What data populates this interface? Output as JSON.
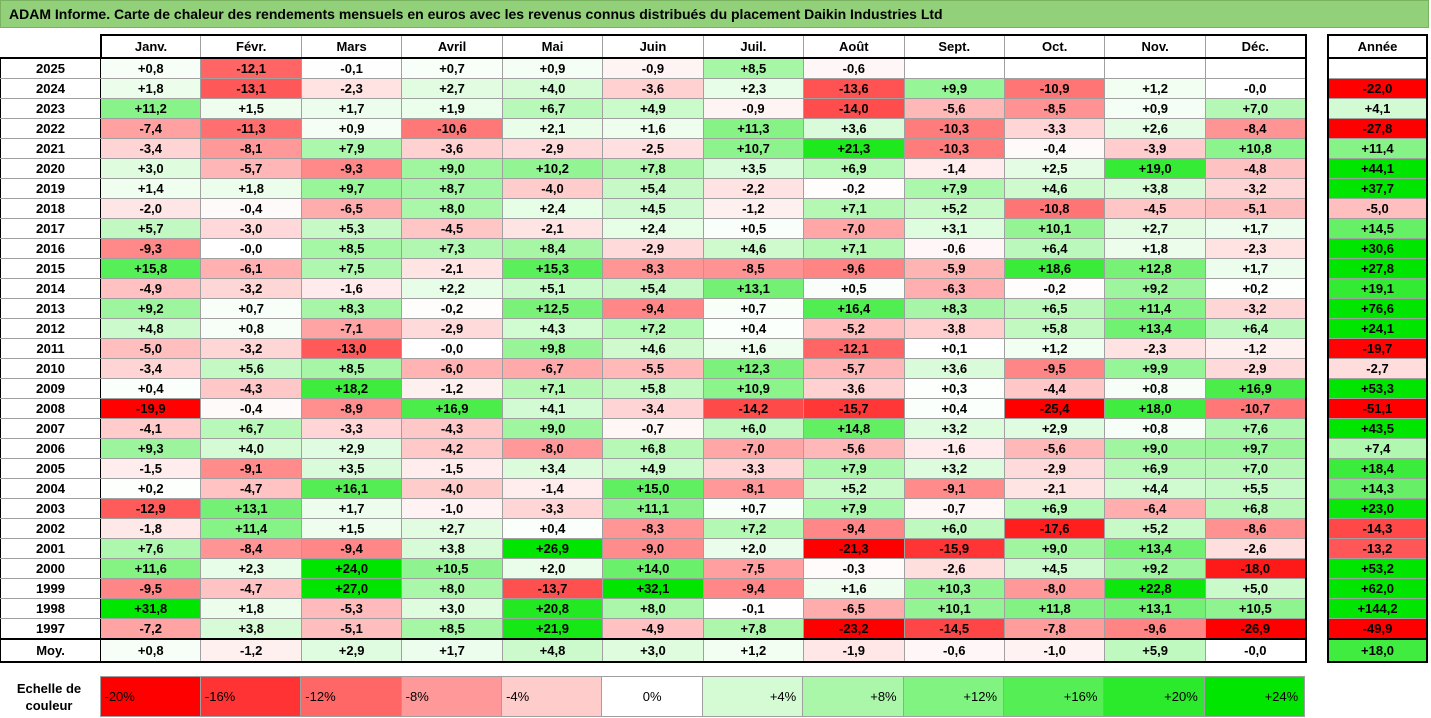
{
  "title": "ADAM Informe. Carte de chaleur des rendements mensuels en euros avec les revenus connus distribués du placement Daikin Industries Ltd",
  "colors": {
    "title_bg": "#93d07a",
    "neg_max": "#ff0000",
    "pos_max": "#00e600",
    "neutral": "#ffffff"
  },
  "chart_data": {
    "type": "heatmap",
    "months": [
      "Janv.",
      "Févr.",
      "Mars",
      "Avril",
      "Mai",
      "Juin",
      "Juil.",
      "Août",
      "Sept.",
      "Oct.",
      "Nov.",
      "Déc."
    ],
    "year_header": "Année",
    "rows": [
      {
        "year": "2025",
        "values": [
          "+0,8",
          "-12,1",
          "-0,1",
          "+0,7",
          "+0,9",
          "-0,9",
          "+8,5",
          "-0,6",
          "",
          "",
          "",
          ""
        ],
        "annual": ""
      },
      {
        "year": "2024",
        "values": [
          "+1,8",
          "-13,1",
          "-2,3",
          "+2,7",
          "+4,0",
          "-3,6",
          "+2,3",
          "-13,6",
          "+9,9",
          "-10,9",
          "+1,2",
          "-0,0"
        ],
        "annual": "-22,0"
      },
      {
        "year": "2023",
        "values": [
          "+11,2",
          "+1,5",
          "+1,7",
          "+1,9",
          "+6,7",
          "+4,9",
          "-0,9",
          "-14,0",
          "-5,6",
          "-8,5",
          "+0,9",
          "+7,0"
        ],
        "annual": "+4,1"
      },
      {
        "year": "2022",
        "values": [
          "-7,4",
          "-11,3",
          "+0,9",
          "-10,6",
          "+2,1",
          "+1,6",
          "+11,3",
          "+3,6",
          "-10,3",
          "-3,3",
          "+2,6",
          "-8,4"
        ],
        "annual": "-27,8"
      },
      {
        "year": "2021",
        "values": [
          "-3,4",
          "-8,1",
          "+7,9",
          "-3,6",
          "-2,9",
          "-2,5",
          "+10,7",
          "+21,3",
          "-10,3",
          "-0,4",
          "-3,9",
          "+10,8"
        ],
        "annual": "+11,4"
      },
      {
        "year": "2020",
        "values": [
          "+3,0",
          "-5,7",
          "-9,3",
          "+9,0",
          "+10,2",
          "+7,8",
          "+3,5",
          "+6,9",
          "-1,4",
          "+2,5",
          "+19,0",
          "-4,8"
        ],
        "annual": "+44,1"
      },
      {
        "year": "2019",
        "values": [
          "+1,4",
          "+1,8",
          "+9,7",
          "+8,7",
          "-4,0",
          "+5,4",
          "-2,2",
          "-0,2",
          "+7,9",
          "+4,6",
          "+3,8",
          "-3,2"
        ],
        "annual": "+37,7"
      },
      {
        "year": "2018",
        "values": [
          "-2,0",
          "-0,4",
          "-6,5",
          "+8,0",
          "+2,4",
          "+4,5",
          "-1,2",
          "+7,1",
          "+5,2",
          "-10,8",
          "-4,5",
          "-5,1"
        ],
        "annual": "-5,0"
      },
      {
        "year": "2017",
        "values": [
          "+5,7",
          "-3,0",
          "+5,3",
          "-4,5",
          "-2,1",
          "+2,4",
          "+0,5",
          "-7,0",
          "+3,1",
          "+10,1",
          "+2,7",
          "+1,7"
        ],
        "annual": "+14,5"
      },
      {
        "year": "2016",
        "values": [
          "-9,3",
          "-0,0",
          "+8,5",
          "+7,3",
          "+8,4",
          "-2,9",
          "+4,6",
          "+7,1",
          "-0,6",
          "+6,4",
          "+1,8",
          "-2,3"
        ],
        "annual": "+30,6"
      },
      {
        "year": "2015",
        "values": [
          "+15,8",
          "-6,1",
          "+7,5",
          "-2,1",
          "+15,3",
          "-8,3",
          "-8,5",
          "-9,6",
          "-5,9",
          "+18,6",
          "+12,8",
          "+1,7"
        ],
        "annual": "+27,8"
      },
      {
        "year": "2014",
        "values": [
          "-4,9",
          "-3,2",
          "-1,6",
          "+2,2",
          "+5,1",
          "+5,4",
          "+13,1",
          "+0,5",
          "-6,3",
          "-0,2",
          "+9,2",
          "+0,2"
        ],
        "annual": "+19,1"
      },
      {
        "year": "2013",
        "values": [
          "+9,2",
          "+0,7",
          "+8,3",
          "-0,2",
          "+12,5",
          "-9,4",
          "+0,7",
          "+16,4",
          "+8,3",
          "+6,5",
          "+11,4",
          "-3,2"
        ],
        "annual": "+76,6"
      },
      {
        "year": "2012",
        "values": [
          "+4,8",
          "+0,8",
          "-7,1",
          "-2,9",
          "+4,3",
          "+7,2",
          "+0,4",
          "-5,2",
          "-3,8",
          "+5,8",
          "+13,4",
          "+6,4"
        ],
        "annual": "+24,1"
      },
      {
        "year": "2011",
        "values": [
          "-5,0",
          "-3,2",
          "-13,0",
          "-0,0",
          "+9,8",
          "+4,6",
          "+1,6",
          "-12,1",
          "+0,1",
          "+1,2",
          "-2,3",
          "-1,2"
        ],
        "annual": "-19,7"
      },
      {
        "year": "2010",
        "values": [
          "-3,4",
          "+5,6",
          "+8,5",
          "-6,0",
          "-6,7",
          "-5,5",
          "+12,3",
          "-5,7",
          "+3,6",
          "-9,5",
          "+9,9",
          "-2,9"
        ],
        "annual": "-2,7"
      },
      {
        "year": "2009",
        "values": [
          "+0,4",
          "-4,3",
          "+18,2",
          "-1,2",
          "+7,1",
          "+5,8",
          "+10,9",
          "-3,6",
          "+0,3",
          "-4,4",
          "+0,8",
          "+16,9"
        ],
        "annual": "+53,3"
      },
      {
        "year": "2008",
        "values": [
          "-19,9",
          "-0,4",
          "-8,9",
          "+16,9",
          "+4,1",
          "-3,4",
          "-14,2",
          "-15,7",
          "+0,4",
          "-25,4",
          "+18,0",
          "-10,7"
        ],
        "annual": "-51,1"
      },
      {
        "year": "2007",
        "values": [
          "-4,1",
          "+6,7",
          "-3,3",
          "-4,3",
          "+9,0",
          "-0,7",
          "+6,0",
          "+14,8",
          "+3,2",
          "+2,9",
          "+0,8",
          "+7,6"
        ],
        "annual": "+43,5"
      },
      {
        "year": "2006",
        "values": [
          "+9,3",
          "+4,0",
          "+2,9",
          "-4,2",
          "-8,0",
          "+6,8",
          "-7,0",
          "-5,6",
          "-1,6",
          "-5,6",
          "+9,0",
          "+9,7"
        ],
        "annual": "+7,4"
      },
      {
        "year": "2005",
        "values": [
          "-1,5",
          "-9,1",
          "+3,5",
          "-1,5",
          "+3,4",
          "+4,9",
          "-3,3",
          "+7,9",
          "+3,2",
          "-2,9",
          "+6,9",
          "+7,0"
        ],
        "annual": "+18,4"
      },
      {
        "year": "2004",
        "values": [
          "+0,2",
          "-4,7",
          "+16,1",
          "-4,0",
          "-1,4",
          "+15,0",
          "-8,1",
          "+5,2",
          "-9,1",
          "-2,1",
          "+4,4",
          "+5,5"
        ],
        "annual": "+14,3"
      },
      {
        "year": "2003",
        "values": [
          "-12,9",
          "+13,1",
          "+1,7",
          "-1,0",
          "-3,3",
          "+11,1",
          "+0,7",
          "+7,9",
          "-0,7",
          "+6,9",
          "-6,4",
          "+6,8"
        ],
        "annual": "+23,0"
      },
      {
        "year": "2002",
        "values": [
          "-1,8",
          "+11,4",
          "+1,5",
          "+2,7",
          "+0,4",
          "-8,3",
          "+7,2",
          "-9,4",
          "+6,0",
          "-17,6",
          "+5,2",
          "-8,6"
        ],
        "annual": "-14,3"
      },
      {
        "year": "2001",
        "values": [
          "+7,6",
          "-8,4",
          "-9,4",
          "+3,8",
          "+26,9",
          "-9,0",
          "+2,0",
          "-21,3",
          "-15,9",
          "+9,0",
          "+13,4",
          "-2,6"
        ],
        "annual": "-13,2"
      },
      {
        "year": "2000",
        "values": [
          "+11,6",
          "+2,3",
          "+24,0",
          "+10,5",
          "+2,0",
          "+14,0",
          "-7,5",
          "-0,3",
          "-2,6",
          "+4,5",
          "+9,2",
          "-18,0"
        ],
        "annual": "+53,2"
      },
      {
        "year": "1999",
        "values": [
          "-9,5",
          "-4,7",
          "+27,0",
          "+8,0",
          "-13,7",
          "+32,1",
          "-9,4",
          "+1,6",
          "+10,3",
          "-8,0",
          "+22,8",
          "+5,0"
        ],
        "annual": "+62,0"
      },
      {
        "year": "1998",
        "values": [
          "+31,8",
          "+1,8",
          "-5,3",
          "+3,0",
          "+20,8",
          "+8,0",
          "-0,1",
          "-6,5",
          "+10,1",
          "+11,8",
          "+13,1",
          "+10,5"
        ],
        "annual": "+144,2"
      },
      {
        "year": "1997",
        "values": [
          "-7,2",
          "+3,8",
          "-5,1",
          "+8,5",
          "+21,9",
          "-4,9",
          "+7,8",
          "-23,2",
          "-14,5",
          "-7,8",
          "-9,6",
          "-26,9"
        ],
        "annual": "-49,9"
      }
    ],
    "average": {
      "label": "Moy.",
      "values": [
        "+0,8",
        "-1,2",
        "+2,9",
        "+1,7",
        "+4,8",
        "+3,0",
        "+1,2",
        "-1,9",
        "-0,6",
        "-1,0",
        "+5,9",
        "-0,0"
      ],
      "annual": "+18,0"
    },
    "scale": {
      "label": "Echelle de couleur",
      "steps": [
        {
          "text": "-20%",
          "value": -20
        },
        {
          "text": "-16%",
          "value": -16
        },
        {
          "text": "-12%",
          "value": -12
        },
        {
          "text": "-8%",
          "value": -8
        },
        {
          "text": "-4%",
          "value": -4
        },
        {
          "text": "0%",
          "value": 0
        },
        {
          "text": "+4%",
          "value": 4
        },
        {
          "text": "+8%",
          "value": 8
        },
        {
          "text": "+12%",
          "value": 12
        },
        {
          "text": "+16%",
          "value": 16
        },
        {
          "text": "+20%",
          "value": 20
        },
        {
          "text": "+24%",
          "value": 24
        }
      ]
    }
  }
}
